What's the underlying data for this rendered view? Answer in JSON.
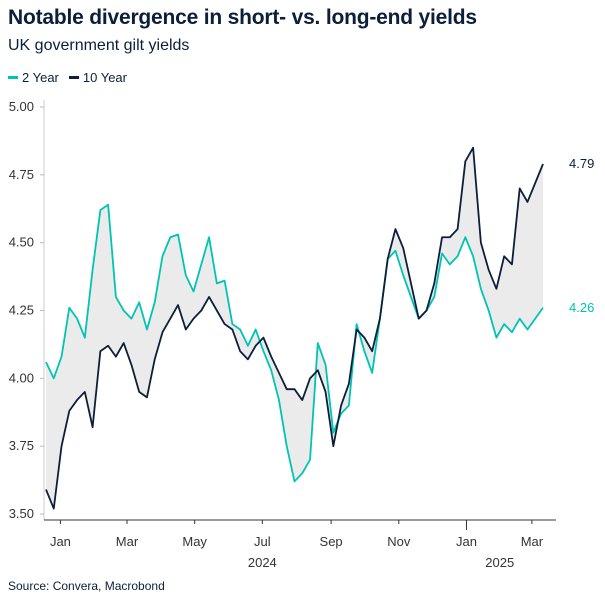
{
  "header": {
    "title": "Notable divergence in short- vs. long-end yields",
    "subtitle": "UK government gilt yields"
  },
  "source": "Source: Convera, Macrobond",
  "chart_data": {
    "type": "line",
    "title": "Notable divergence in short- vs. long-end yields",
    "subtitle": "UK government gilt yields",
    "xlabel": "",
    "ylabel": "",
    "ylim": [
      3.5,
      5.0
    ],
    "yticks": [
      "3.50",
      "3.75",
      "4.00",
      "4.25",
      "4.50",
      "4.75",
      "5.00"
    ],
    "xticks": [
      {
        "label": "Jan",
        "date": "2024-01-15"
      },
      {
        "label": "Mar",
        "date": "2024-03-15"
      },
      {
        "label": "May",
        "date": "2024-05-15"
      },
      {
        "label": "Jul",
        "date": "2024-07-15"
      },
      {
        "label": "Sep",
        "date": "2024-09-15"
      },
      {
        "label": "Nov",
        "date": "2024-11-15"
      },
      {
        "label": "Jan",
        "date": "2025-01-15"
      },
      {
        "label": "Mar",
        "date": "2025-03-15"
      }
    ],
    "year_labels": [
      {
        "label": "2024",
        "date": "2024-07-15"
      },
      {
        "label": "2025",
        "date": "2025-02-14"
      }
    ],
    "grid": false,
    "legend": "top-left",
    "fill_between": "#ebebeb",
    "x": [
      "2024-01-02",
      "2024-01-09",
      "2024-01-16",
      "2024-01-23",
      "2024-01-30",
      "2024-02-06",
      "2024-02-13",
      "2024-02-20",
      "2024-02-27",
      "2024-03-05",
      "2024-03-12",
      "2024-03-19",
      "2024-03-26",
      "2024-04-02",
      "2024-04-09",
      "2024-04-16",
      "2024-04-23",
      "2024-04-30",
      "2024-05-07",
      "2024-05-14",
      "2024-05-21",
      "2024-05-28",
      "2024-06-04",
      "2024-06-11",
      "2024-06-18",
      "2024-06-25",
      "2024-07-02",
      "2024-07-09",
      "2024-07-16",
      "2024-07-23",
      "2024-07-30",
      "2024-08-06",
      "2024-08-13",
      "2024-08-20",
      "2024-08-27",
      "2024-09-03",
      "2024-09-10",
      "2024-09-17",
      "2024-09-24",
      "2024-10-01",
      "2024-10-08",
      "2024-10-15",
      "2024-10-22",
      "2024-10-29",
      "2024-11-05",
      "2024-11-12",
      "2024-11-19",
      "2024-11-26",
      "2024-12-03",
      "2024-12-10",
      "2024-12-17",
      "2024-12-24",
      "2024-12-31",
      "2025-01-07",
      "2025-01-14",
      "2025-01-21",
      "2025-01-28",
      "2025-02-04",
      "2025-02-11",
      "2025-02-18",
      "2025-02-25",
      "2025-03-04",
      "2025-03-11",
      "2025-03-18",
      "2025-03-25"
    ],
    "series": [
      {
        "name": "2 Year",
        "color": "#00c4b3",
        "end_label": "4.26",
        "values": [
          4.06,
          4.0,
          4.08,
          4.26,
          4.22,
          4.15,
          4.4,
          4.62,
          4.64,
          4.3,
          4.25,
          4.22,
          4.28,
          4.18,
          4.28,
          4.45,
          4.52,
          4.53,
          4.38,
          4.32,
          4.42,
          4.52,
          4.35,
          4.36,
          4.2,
          4.18,
          4.12,
          4.18,
          4.1,
          4.03,
          3.92,
          3.75,
          3.62,
          3.65,
          3.7,
          4.13,
          4.05,
          3.8,
          3.87,
          3.9,
          4.2,
          4.1,
          4.02,
          4.22,
          4.44,
          4.47,
          4.38,
          4.3,
          4.22,
          4.25,
          4.3,
          4.46,
          4.42,
          4.45,
          4.52,
          4.45,
          4.33,
          4.25,
          4.15,
          4.2,
          4.17,
          4.22,
          4.18,
          4.22,
          4.26
        ]
      },
      {
        "name": "10 Year",
        "color": "#0b1f3a",
        "end_label": "4.79",
        "values": [
          3.59,
          3.52,
          3.75,
          3.88,
          3.92,
          3.95,
          3.82,
          4.1,
          4.12,
          4.08,
          4.13,
          4.05,
          3.95,
          3.93,
          4.07,
          4.17,
          4.22,
          4.27,
          4.18,
          4.22,
          4.25,
          4.3,
          4.25,
          4.2,
          4.18,
          4.1,
          4.07,
          4.12,
          4.15,
          4.08,
          4.02,
          3.96,
          3.96,
          3.92,
          4.0,
          4.03,
          3.95,
          3.75,
          3.9,
          3.98,
          4.18,
          4.15,
          4.1,
          4.22,
          4.44,
          4.55,
          4.48,
          4.35,
          4.22,
          4.25,
          4.35,
          4.52,
          4.52,
          4.55,
          4.8,
          4.85,
          4.5,
          4.4,
          4.33,
          4.45,
          4.42,
          4.7,
          4.65,
          4.72,
          4.79
        ]
      }
    ]
  }
}
